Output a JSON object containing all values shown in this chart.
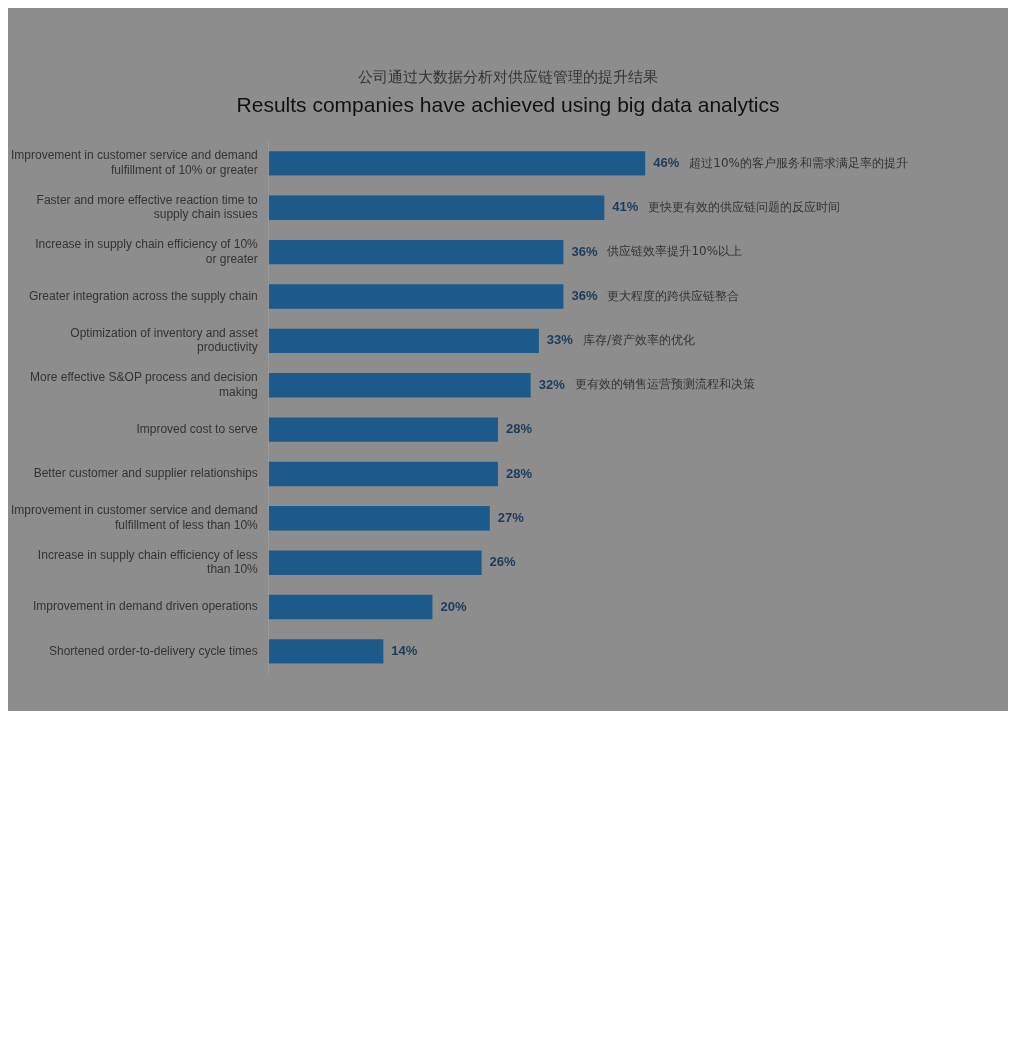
{
  "chart_data": {
    "type": "bar",
    "orientation": "horizontal",
    "subtitle": "公司通过大数据分析对供应链管理的提升结果",
    "title": "Results companies have achieved using big data analytics",
    "categories": [
      "Improvement in customer service and demand fulfillment of 10% or greater",
      "Faster and more effective reaction time to supply chain issues",
      "Increase in supply chain efficiency of 10% or greater",
      "Greater integration across the supply chain",
      "Optimization of inventory and asset productivity",
      "More effective S&OP process and decision making",
      "Improved cost to serve",
      "Better customer and supplier relationships",
      "Improvement in customer service and demand fulfillment of less than 10%",
      "Increase in supply chain efficiency of less than 10%",
      "Improvement in demand driven operations",
      "Shortened order-to-delivery cycle times"
    ],
    "values": [
      46,
      41,
      36,
      36,
      33,
      32,
      28,
      28,
      27,
      26,
      20,
      14
    ],
    "value_labels": [
      "46%",
      "41%",
      "36%",
      "36%",
      "33%",
      "32%",
      "28%",
      "28%",
      "27%",
      "26%",
      "20%",
      "14%"
    ],
    "color": "#1c5a8c",
    "tick_labels": "y",
    "grid": false,
    "legend": false,
    "annotations": [
      "超过10%的客户服务和需求满足率的提升",
      "更快更有效的供应链问题的反应时间",
      "供应链效率提升10%以上",
      "更大程度的跨供应链整合",
      "库存/资产效率的优化",
      "更有效的销售运营预测流程和决策"
    ]
  }
}
